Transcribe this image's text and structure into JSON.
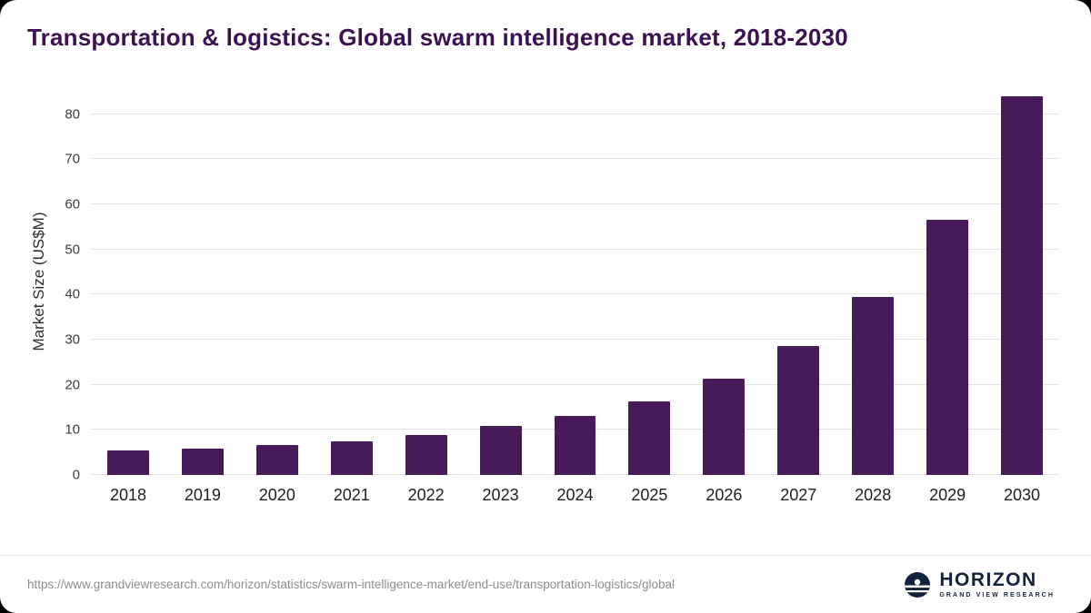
{
  "title": "Transportation & logistics: Global swarm intelligence market, 2018-2030",
  "colors": {
    "bar": "#471a5a",
    "title": "#3d1152",
    "gridline": "#e3e3e3",
    "logo_navy": "#13233d"
  },
  "chart_data": {
    "type": "bar",
    "title": "Transportation & logistics: Global swarm intelligence market, 2018-2030",
    "xlabel": "",
    "ylabel": "Market Size (US$M)",
    "categories": [
      "2018",
      "2019",
      "2020",
      "2021",
      "2022",
      "2023",
      "2024",
      "2025",
      "2026",
      "2027",
      "2028",
      "2029",
      "2030"
    ],
    "values": [
      5.4,
      5.9,
      6.6,
      7.4,
      8.9,
      10.8,
      13.1,
      16.4,
      21.4,
      28.7,
      39.5,
      56.5,
      84.0
    ],
    "ylim": [
      0,
      86
    ],
    "yticks": [
      0,
      10,
      20,
      30,
      40,
      50,
      60,
      70,
      80
    ],
    "grid": "horizontal",
    "legend": "none"
  },
  "footer": {
    "source_url": "https://www.grandviewresearch.com/horizon/statistics/swarm-intelligence-market/end-use/transportation-logistics/global",
    "logo_title": "HORIZON",
    "logo_subtitle": "GRAND VIEW RESEARCH"
  }
}
